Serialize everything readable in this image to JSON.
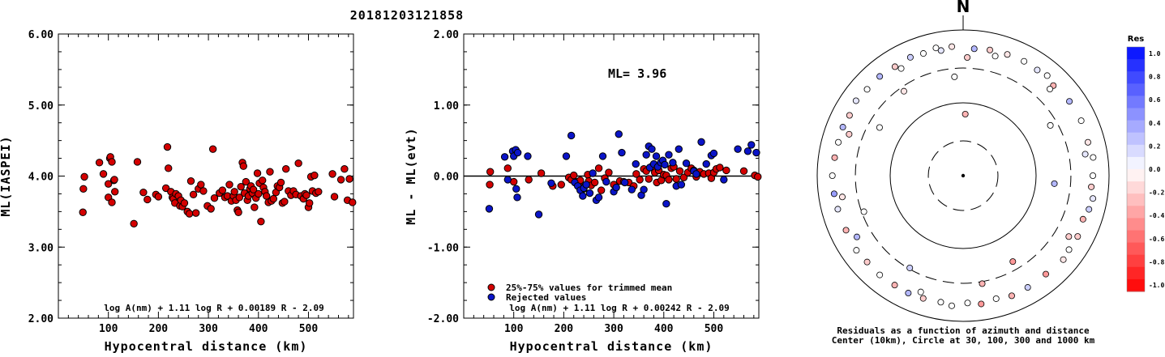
{
  "title": "20181203121858",
  "colors": {
    "red_point": "#d40000",
    "blue_point": "#0a14c8",
    "outline": "#000000"
  },
  "chart_data": [
    {
      "type": "scatter",
      "panel": "left",
      "xlabel": "Hypocentral distance (km)",
      "ylabel": "ML(IASPEI)",
      "xlim": [
        0,
        590
      ],
      "ylim": [
        2,
        6
      ],
      "xticks": [
        "100",
        "200",
        "300",
        "400",
        "500"
      ],
      "yticks": [
        "2.00",
        "3.00",
        "4.00",
        "5.00",
        "6.00"
      ],
      "formula": "log A(nm) + 1.11 log R + 0.00189 R - 2.09",
      "points": [
        [
          49,
          3.49
        ],
        [
          50,
          3.82
        ],
        [
          52,
          3.99
        ],
        [
          82,
          4.19
        ],
        [
          90,
          4.03
        ],
        [
          100,
          3.89
        ],
        [
          100,
          3.7
        ],
        [
          103,
          4.25
        ],
        [
          104,
          4.27
        ],
        [
          107,
          4.2
        ],
        [
          107,
          3.63
        ],
        [
          111,
          3.94
        ],
        [
          112,
          3.95
        ],
        [
          113,
          3.78
        ],
        [
          151,
          3.33
        ],
        [
          158,
          4.2
        ],
        [
          170,
          3.77
        ],
        [
          178,
          3.67
        ],
        [
          195,
          3.74
        ],
        [
          200,
          3.71
        ],
        [
          215,
          3.83
        ],
        [
          218,
          4.41
        ],
        [
          220,
          4.11
        ],
        [
          225,
          3.78
        ],
        [
          228,
          3.7
        ],
        [
          230,
          3.68
        ],
        [
          233,
          3.62
        ],
        [
          235,
          3.75
        ],
        [
          240,
          3.72
        ],
        [
          243,
          3.58
        ],
        [
          245,
          3.66
        ],
        [
          248,
          3.57
        ],
        [
          252,
          3.62
        ],
        [
          258,
          3.5
        ],
        [
          262,
          3.47
        ],
        [
          265,
          3.93
        ],
        [
          270,
          3.74
        ],
        [
          275,
          3.48
        ],
        [
          280,
          3.82
        ],
        [
          285,
          3.88
        ],
        [
          290,
          3.79
        ],
        [
          298,
          3.58
        ],
        [
          305,
          3.54
        ],
        [
          309,
          4.38
        ],
        [
          312,
          3.69
        ],
        [
          322,
          3.76
        ],
        [
          328,
          3.8
        ],
        [
          333,
          3.7
        ],
        [
          338,
          3.72
        ],
        [
          342,
          3.88
        ],
        [
          346,
          3.65
        ],
        [
          350,
          3.72
        ],
        [
          352,
          3.78
        ],
        [
          355,
          3.66
        ],
        [
          358,
          3.52
        ],
        [
          360,
          3.49
        ],
        [
          362,
          3.7
        ],
        [
          365,
          3.85
        ],
        [
          368,
          4.19
        ],
        [
          370,
          4.14
        ],
        [
          372,
          3.76
        ],
        [
          375,
          3.92
        ],
        [
          378,
          3.66
        ],
        [
          380,
          3.72
        ],
        [
          383,
          3.82
        ],
        [
          385,
          3.86
        ],
        [
          388,
          3.76
        ],
        [
          390,
          3.81
        ],
        [
          392,
          3.56
        ],
        [
          395,
          3.69
        ],
        [
          398,
          4.04
        ],
        [
          400,
          3.75
        ],
        [
          402,
          3.9
        ],
        [
          405,
          3.36
        ],
        [
          408,
          3.94
        ],
        [
          410,
          3.84
        ],
        [
          413,
          3.78
        ],
        [
          416,
          3.72
        ],
        [
          420,
          3.63
        ],
        [
          423,
          4.06
        ],
        [
          426,
          3.65
        ],
        [
          430,
          3.68
        ],
        [
          435,
          3.77
        ],
        [
          438,
          3.86
        ],
        [
          442,
          3.84
        ],
        [
          445,
          3.91
        ],
        [
          448,
          3.62
        ],
        [
          452,
          3.64
        ],
        [
          455,
          4.1
        ],
        [
          460,
          3.79
        ],
        [
          465,
          3.73
        ],
        [
          470,
          3.79
        ],
        [
          475,
          3.74
        ],
        [
          480,
          4.18
        ],
        [
          485,
          3.72
        ],
        [
          490,
          3.68
        ],
        [
          493,
          3.75
        ],
        [
          496,
          3.73
        ],
        [
          500,
          3.56
        ],
        [
          502,
          3.62
        ],
        [
          505,
          3.99
        ],
        [
          508,
          3.79
        ],
        [
          512,
          4.01
        ],
        [
          515,
          3.76
        ],
        [
          520,
          3.78
        ],
        [
          548,
          4.03
        ],
        [
          552,
          3.71
        ],
        [
          565,
          3.95
        ],
        [
          572,
          4.1
        ],
        [
          578,
          3.66
        ],
        [
          582,
          3.96
        ],
        [
          588,
          3.63
        ]
      ]
    },
    {
      "type": "scatter",
      "panel": "middle",
      "xlabel": "Hypocentral distance (km)",
      "ylabel": "ML - ML(evt)",
      "xlim": [
        0,
        590
      ],
      "ylim": [
        -2,
        2
      ],
      "xticks": [
        "100",
        "200",
        "300",
        "400",
        "500"
      ],
      "yticks": [
        "-2.00",
        "-1.00",
        "0.00",
        "1.00",
        "2.00"
      ],
      "ml_label": "ML=",
      "ml_value": "3.96",
      "reference_line": 0,
      "legend": [
        {
          "label": "25%-75% values for trimmed mean",
          "color_key": "red"
        },
        {
          "label": "Rejected values",
          "color_key": "blue"
        }
      ],
      "formula": "log A(nm) + 1.11 log R + 0.00242 R - 2.09",
      "points_red": [
        [
          52,
          -0.12
        ],
        [
          53,
          0.06
        ],
        [
          88,
          0.11
        ],
        [
          100,
          -0.08
        ],
        [
          130,
          -0.05
        ],
        [
          155,
          0.04
        ],
        [
          178,
          -0.14
        ],
        [
          195,
          -0.12
        ],
        [
          210,
          -0.02
        ],
        [
          215,
          -0.05
        ],
        [
          220,
          0.01
        ],
        [
          225,
          -0.08
        ],
        [
          230,
          -0.11
        ],
        [
          233,
          -0.06
        ],
        [
          240,
          -0.18
        ],
        [
          248,
          0.02
        ],
        [
          250,
          -0.07
        ],
        [
          255,
          -0.13
        ],
        [
          262,
          -0.09
        ],
        [
          270,
          0.11
        ],
        [
          275,
          -0.2
        ],
        [
          282,
          -0.03
        ],
        [
          290,
          0.05
        ],
        [
          300,
          -0.12
        ],
        [
          312,
          -0.07
        ],
        [
          320,
          -0.08
        ],
        [
          330,
          -0.09
        ],
        [
          340,
          -0.14
        ],
        [
          345,
          0.03
        ],
        [
          352,
          -0.05
        ],
        [
          360,
          0.1
        ],
        [
          365,
          0.07
        ],
        [
          370,
          -0.04
        ],
        [
          375,
          0.13
        ],
        [
          378,
          0.12
        ],
        [
          382,
          0.05
        ],
        [
          386,
          -0.09
        ],
        [
          390,
          0.08
        ],
        [
          395,
          -0.06
        ],
        [
          400,
          0.02
        ],
        [
          405,
          0.01
        ],
        [
          410,
          -0.05
        ],
        [
          415,
          0.11
        ],
        [
          420,
          0.13
        ],
        [
          425,
          -0.04
        ],
        [
          432,
          0.07
        ],
        [
          440,
          -0.02
        ],
        [
          448,
          0.05
        ],
        [
          455,
          0.11
        ],
        [
          460,
          0.08
        ],
        [
          465,
          -0.01
        ],
        [
          472,
          0.06
        ],
        [
          480,
          0.03
        ],
        [
          490,
          0.04
        ],
        [
          495,
          -0.03
        ],
        [
          500,
          0.05
        ],
        [
          505,
          0.1
        ],
        [
          512,
          0.12
        ],
        [
          525,
          0.08
        ],
        [
          560,
          0.07
        ],
        [
          582,
          0.01
        ],
        [
          588,
          -0.01
        ]
      ],
      "points_blue": [
        [
          51,
          -0.46
        ],
        [
          82,
          0.27
        ],
        [
          88,
          -0.05
        ],
        [
          98,
          0.35
        ],
        [
          100,
          0.28
        ],
        [
          104,
          0.37
        ],
        [
          105,
          -0.18
        ],
        [
          107,
          -0.3
        ],
        [
          108,
          0.33
        ],
        [
          128,
          0.28
        ],
        [
          150,
          -0.54
        ],
        [
          175,
          -0.1
        ],
        [
          205,
          0.28
        ],
        [
          215,
          0.57
        ],
        [
          222,
          -0.09
        ],
        [
          228,
          -0.14
        ],
        [
          233,
          -0.2
        ],
        [
          238,
          -0.28
        ],
        [
          240,
          -0.17
        ],
        [
          245,
          -0.12
        ],
        [
          252,
          -0.24
        ],
        [
          258,
          0.04
        ],
        [
          265,
          -0.34
        ],
        [
          270,
          -0.3
        ],
        [
          278,
          0.28
        ],
        [
          285,
          -0.08
        ],
        [
          300,
          -0.22
        ],
        [
          305,
          -0.16
        ],
        [
          310,
          0.59
        ],
        [
          316,
          0.33
        ],
        [
          322,
          -0.09
        ],
        [
          336,
          -0.19
        ],
        [
          344,
          0.17
        ],
        [
          355,
          -0.27
        ],
        [
          360,
          -0.19
        ],
        [
          365,
          0.3
        ],
        [
          370,
          0.42
        ],
        [
          372,
          0.12
        ],
        [
          376,
          0.38
        ],
        [
          380,
          0.17
        ],
        [
          385,
          0.28
        ],
        [
          388,
          0.13
        ],
        [
          394,
          0.19
        ],
        [
          398,
          0.22
        ],
        [
          402,
          0.16
        ],
        [
          405,
          -0.39
        ],
        [
          410,
          0.3
        ],
        [
          418,
          0.19
        ],
        [
          425,
          -0.14
        ],
        [
          430,
          0.38
        ],
        [
          435,
          -0.12
        ],
        [
          445,
          0.18
        ],
        [
          460,
          0.07
        ],
        [
          465,
          0.03
        ],
        [
          475,
          0.48
        ],
        [
          485,
          0.17
        ],
        [
          495,
          0.29
        ],
        [
          500,
          0.32
        ],
        [
          520,
          -0.05
        ],
        [
          548,
          0.38
        ],
        [
          568,
          0.35
        ],
        [
          575,
          0.44
        ],
        [
          585,
          0.33
        ]
      ]
    },
    {
      "type": "scatter",
      "panel": "polar",
      "north_label": "N",
      "colorbar_title": "Res",
      "colorbar_ticks": [
        "1.0",
        "0.8",
        "0.6",
        "0.4",
        "0.2",
        "0.0",
        "-0.2",
        "-0.4",
        "-0.6",
        "-0.8",
        "-1.0"
      ],
      "caption_line1": "Residuals as a function of azimuth and distance",
      "caption_line2": "Center (10km), Circle at 30, 100, 300 and 1000 km",
      "points": [
        [
          5,
          560,
          0.3
        ],
        [
          350,
          555,
          0.1
        ],
        [
          12,
          580,
          -0.2
        ],
        [
          20,
          590,
          -0.1
        ],
        [
          28,
          600,
          0
        ],
        [
          35,
          590,
          0.1
        ],
        [
          40,
          620,
          0
        ],
        [
          45,
          560,
          -0.3
        ],
        [
          55,
          600,
          0.3
        ],
        [
          65,
          610,
          0
        ],
        [
          75,
          590,
          -0.1
        ],
        [
          82,
          630,
          0
        ],
        [
          90,
          600,
          0
        ],
        [
          95,
          580,
          -0.2
        ],
        [
          100,
          640,
          0.1
        ],
        [
          105,
          610,
          0.2
        ],
        [
          110,
          560,
          -0.3
        ],
        [
          118,
          600,
          -0.2
        ],
        [
          125,
          590,
          0
        ],
        [
          130,
          620,
          -0.1
        ],
        [
          140,
          580,
          -0.4
        ],
        [
          150,
          590,
          0.2
        ],
        [
          158,
          600,
          -0.3
        ],
        [
          165,
          560,
          0
        ],
        [
          172,
          600,
          -0.4
        ],
        [
          178,
          560,
          0
        ],
        [
          185,
          620,
          0
        ],
        [
          190,
          580,
          0
        ],
        [
          198,
          590,
          -0.2
        ],
        [
          205,
          600,
          0.3
        ],
        [
          212,
          590,
          -0.3
        ],
        [
          220,
          600,
          0
        ],
        [
          228,
          590,
          -0.2
        ],
        [
          235,
          610,
          0
        ],
        [
          245,
          590,
          -0.3
        ],
        [
          255,
          600,
          0.1
        ],
        [
          262,
          610,
          0.4
        ],
        [
          270,
          620,
          0
        ],
        [
          278,
          600,
          -0.3
        ],
        [
          285,
          590,
          0
        ],
        [
          292,
          600,
          0.3
        ],
        [
          298,
          580,
          -0.2
        ],
        [
          305,
          620,
          0.1
        ],
        [
          312,
          590,
          0
        ],
        [
          320,
          600,
          0.3
        ],
        [
          328,
          580,
          -0.2
        ],
        [
          336,
          600,
          0.2
        ],
        [
          342,
          580,
          0
        ],
        [
          348,
          620,
          0
        ],
        [
          355,
          600,
          -0.1
        ],
        [
          2,
          420,
          -0.2
        ],
        [
          60,
          240,
          0
        ],
        [
          95,
          180,
          0.3
        ],
        [
          150,
          230,
          -0.4
        ],
        [
          210,
          290,
          0.2
        ],
        [
          250,
          280,
          0
        ],
        [
          300,
          210,
          0
        ],
        [
          325,
          260,
          -0.1
        ],
        [
          355,
          230,
          0
        ],
        [
          2,
          70,
          -0.3
        ],
        [
          15,
          500,
          0
        ],
        [
          80,
          500,
          0.1
        ],
        [
          120,
          470,
          -0.2
        ],
        [
          200,
          500,
          0
        ],
        [
          240,
          480,
          0.3
        ],
        [
          290,
          460,
          -0.2
        ],
        [
          330,
          500,
          0
        ],
        [
          170,
          320,
          -0.3
        ],
        [
          45,
          480,
          0
        ],
        [
          260,
          480,
          -0.1
        ]
      ]
    }
  ]
}
